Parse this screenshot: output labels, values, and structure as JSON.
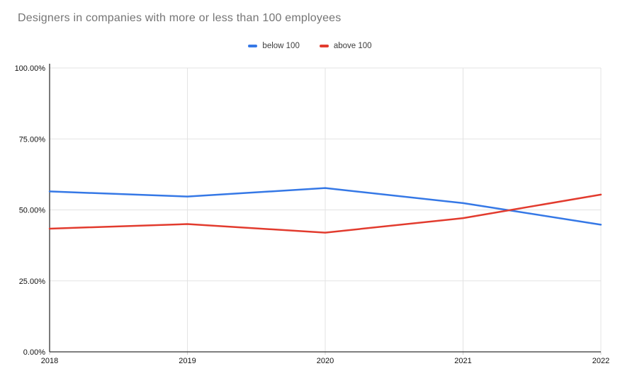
{
  "title": "Designers in companies with more or less than 100 employees",
  "colors": {
    "background": "#ffffff",
    "title_text": "#757575",
    "axis_text": "#111111",
    "axis_line": "#333333",
    "gridline": "#e3e3e3",
    "tick": "#cccccc"
  },
  "legend": {
    "items": [
      {
        "label": "below 100",
        "color": "#3578e6"
      },
      {
        "label": "above 100",
        "color": "#e23b2e"
      }
    ]
  },
  "chart_data": {
    "type": "line",
    "title": "Designers in companies with more or less than 100 employees",
    "x": [
      "2018",
      "2019",
      "2020",
      "2021",
      "2022"
    ],
    "series": [
      {
        "name": "below 100",
        "color": "#3578e6",
        "values": [
          56.5,
          54.7,
          57.7,
          52.4,
          44.8
        ]
      },
      {
        "name": "above 100",
        "color": "#e23b2e",
        "values": [
          43.4,
          45.0,
          42.0,
          47.1,
          55.4
        ]
      }
    ],
    "ylim": [
      0,
      100
    ],
    "yticks": [
      {
        "value": 0,
        "label": "0.00%"
      },
      {
        "value": 25,
        "label": "25.00%"
      },
      {
        "value": 50,
        "label": "50.00%"
      },
      {
        "value": 75,
        "label": "75.00%"
      },
      {
        "value": 100,
        "label": "100.00%"
      }
    ],
    "grid": true,
    "legend_position": "top",
    "xlabel": "",
    "ylabel": ""
  }
}
